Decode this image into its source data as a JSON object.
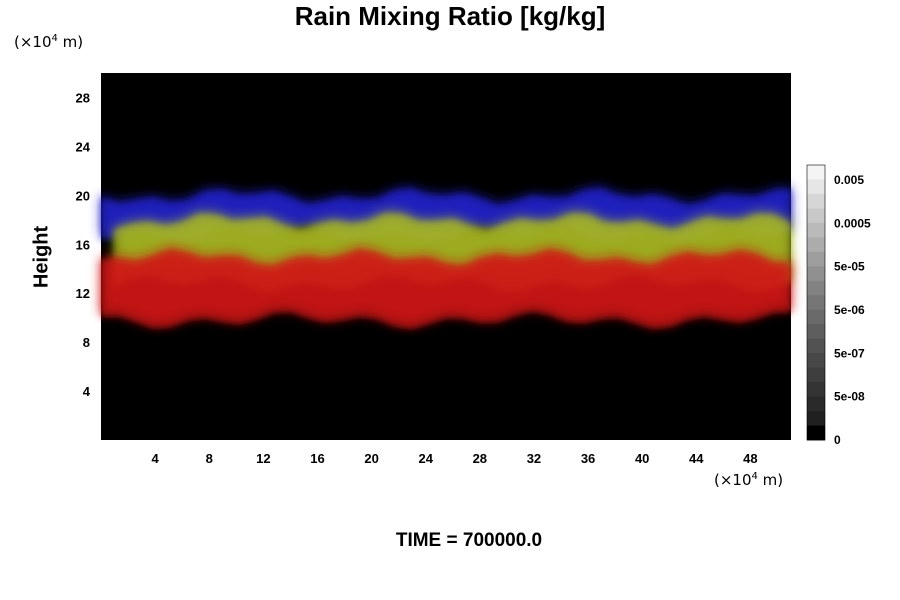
{
  "title": "Rain Mixing Ratio [kg/kg]",
  "unit_prefix": "(×10",
  "unit_exp": "4",
  "unit_suffix": " m)",
  "footer": "TIME = 700000.0",
  "chart_data": {
    "type": "heatmap",
    "title": "Rain Mixing Ratio [kg/kg]",
    "ylabel": "Height",
    "xlabel": "",
    "x_unit": "(×10^4 m)",
    "y_unit": "(×10^4 m)",
    "xlim": [
      0,
      51
    ],
    "ylim": [
      0,
      30
    ],
    "x_ticks": [
      4,
      8,
      12,
      16,
      20,
      24,
      28,
      32,
      36,
      40,
      44,
      48
    ],
    "y_ticks": [
      4,
      8,
      12,
      16,
      20,
      24,
      28
    ],
    "background_color": "#000000",
    "bands": [
      {
        "color": "#2222cc",
        "y_range": [
          17,
          20
        ],
        "x_range": [
          0,
          51
        ]
      },
      {
        "color": "#a8b820",
        "y_range": [
          13,
          18
        ],
        "x_range": [
          1,
          51
        ]
      },
      {
        "color": "#d01818",
        "y_range": [
          10,
          15
        ],
        "x_range": [
          0,
          51
        ]
      }
    ],
    "colorbar": {
      "ticks": [
        "0.005",
        "0.0005",
        "5e-05",
        "5e-06",
        "5e-07",
        "5e-08",
        "0"
      ],
      "colors": [
        "#f4f4f4",
        "#e6e6e6",
        "#d6d6d6",
        "#c8c8c8",
        "#bababa",
        "#acacac",
        "#9e9e9e",
        "#909090",
        "#828282",
        "#767676",
        "#6a6a6a",
        "#5e5e5e",
        "#525252",
        "#484848",
        "#3e3e3e",
        "#343434",
        "#2a2a2a",
        "#202020",
        "#000000"
      ]
    }
  }
}
